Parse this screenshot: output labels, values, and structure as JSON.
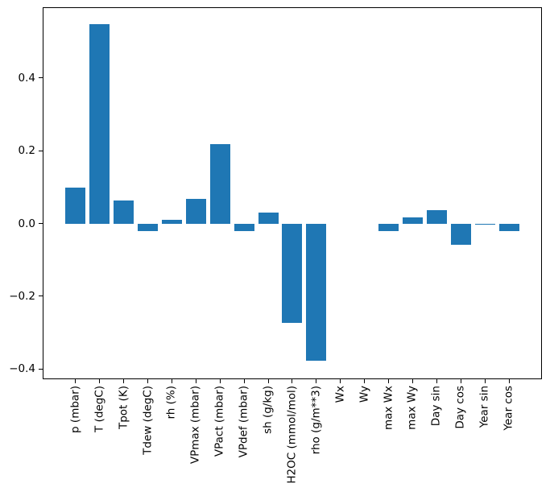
{
  "figure": {
    "background": "#ffffff",
    "title": ""
  },
  "chart_data": {
    "type": "bar",
    "title": "",
    "xlabel": "",
    "ylabel": "",
    "categories": [
      "p (mbar)",
      "T (degC)",
      "Tpot (K)",
      "Tdew (degC)",
      "rh (%)",
      "VPmax (mbar)",
      "VPact (mbar)",
      "VPdef (mbar)",
      "sh (g/kg)",
      "H2OC (mmol/mol)",
      "rho (g/m**3)",
      "Wx",
      "Wy",
      "max Wx",
      "max Wy",
      "Day sin",
      "Day cos",
      "Year sin",
      "Year cos"
    ],
    "values": [
      0.098,
      0.548,
      0.063,
      -0.021,
      0.011,
      0.068,
      0.217,
      -0.022,
      0.031,
      -0.273,
      -0.378,
      0.0,
      0.0,
      -0.022,
      0.016,
      0.036,
      -0.058,
      -0.003,
      -0.021
    ],
    "bar_color": "#1f77b4",
    "axis_color": "#000000",
    "ylim": [
      -0.428,
      0.594
    ],
    "yticks": [
      {
        "value": 0.4,
        "label": "0.4"
      },
      {
        "value": 0.2,
        "label": "0.2"
      },
      {
        "value": 0.0,
        "label": "0.0"
      },
      {
        "value": -0.2,
        "label": "−0.2"
      },
      {
        "value": -0.4,
        "label": "−0.4"
      }
    ],
    "x_tick_rotation": 90,
    "grid": false,
    "legend": null
  }
}
